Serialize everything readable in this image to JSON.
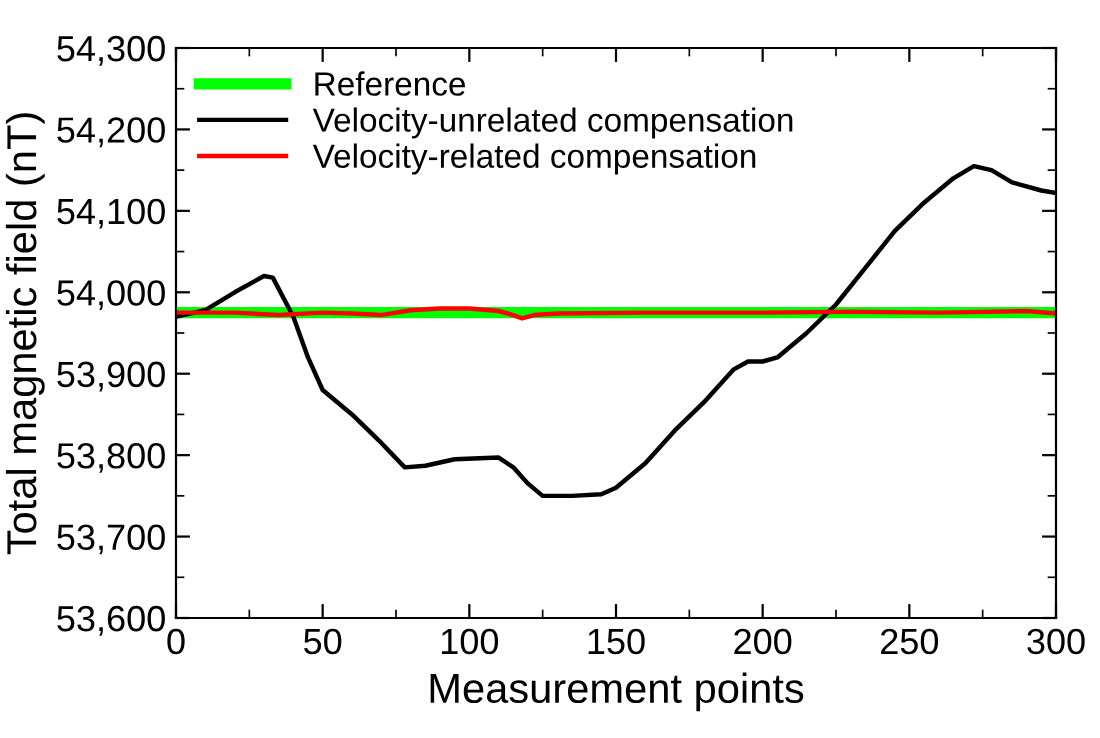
{
  "chart_data": {
    "type": "line",
    "xlabel": "Measurement points",
    "ylabel": "Total magnetic field (nT)",
    "xlim": [
      0,
      300
    ],
    "ylim": [
      53600,
      54300
    ],
    "xticks": [
      0,
      {
        "value": 25,
        "label": null
      },
      50,
      {
        "value": 75,
        "label": null
      },
      100,
      {
        "value": 125,
        "label": null
      },
      150,
      {
        "value": 175,
        "label": null
      },
      200,
      {
        "value": 225,
        "label": null
      },
      250,
      {
        "value": 275,
        "label": null
      },
      300
    ],
    "yticks": [
      {
        "value": 53600,
        "label": "53,600"
      },
      {
        "value": 53650,
        "label": null
      },
      {
        "value": 53700,
        "label": "53,700"
      },
      {
        "value": 53750,
        "label": null
      },
      {
        "value": 53800,
        "label": "53,800"
      },
      {
        "value": 53850,
        "label": null
      },
      {
        "value": 53900,
        "label": "53,900"
      },
      {
        "value": 53950,
        "label": null
      },
      {
        "value": 54000,
        "label": "54,000"
      },
      {
        "value": 54050,
        "label": null
      },
      {
        "value": 54100,
        "label": "54,100"
      },
      {
        "value": 54150,
        "label": null
      },
      {
        "value": 54200,
        "label": "54,200"
      },
      {
        "value": 54250,
        "label": null
      },
      {
        "value": 54300,
        "label": "54,300"
      }
    ],
    "grid": false,
    "legend": "top left",
    "marker": "none",
    "line_style": "solid",
    "series": [
      {
        "name": "Reference",
        "color": "#00ff00",
        "x": [
          0,
          300
        ],
        "values": [
          53975,
          53975
        ]
      },
      {
        "name": "Velocity-unrelated compensation",
        "color": "#000000",
        "x": [
          0,
          10,
          20,
          30,
          33,
          40,
          45,
          50,
          60,
          70,
          78,
          85,
          95,
          110,
          115,
          120,
          125,
          135,
          145,
          150,
          160,
          170,
          180,
          190,
          195,
          200,
          205,
          215,
          225,
          235,
          245,
          255,
          265,
          272,
          278,
          285,
          295,
          300
        ],
        "values": [
          53970,
          53978,
          54000,
          54020,
          54018,
          53970,
          53920,
          53880,
          53850,
          53815,
          53785,
          53787,
          53795,
          53797,
          53785,
          53765,
          53750,
          53750,
          53752,
          53760,
          53790,
          53830,
          53865,
          53905,
          53915,
          53915,
          53920,
          53950,
          53985,
          54030,
          54075,
          54110,
          54140,
          54155,
          54150,
          54135,
          54125,
          54122
        ]
      },
      {
        "name": "Velocity-related compensation",
        "color": "#ff0000",
        "x": [
          0,
          20,
          30,
          35,
          50,
          60,
          70,
          80,
          90,
          100,
          110,
          115,
          118,
          122,
          130,
          160,
          200,
          230,
          260,
          290,
          300
        ],
        "values": [
          53975,
          53975,
          53973,
          53972,
          53975,
          53974,
          53972,
          53978,
          53980,
          53980,
          53977,
          53972,
          53968,
          53972,
          53974,
          53975,
          53975,
          53976,
          53975,
          53977,
          53974
        ]
      }
    ]
  }
}
